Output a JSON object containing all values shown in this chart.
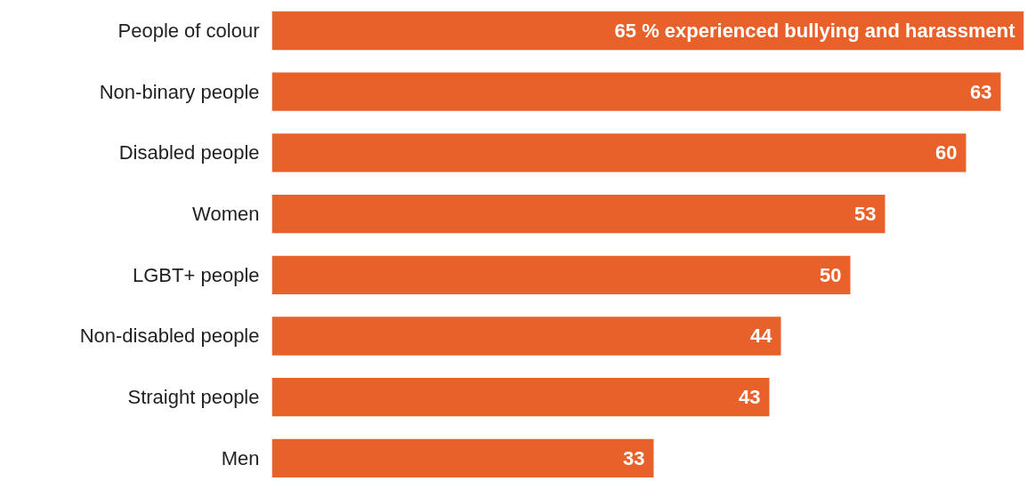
{
  "chart_data": {
    "type": "bar",
    "orientation": "horizontal",
    "categories": [
      "People of colour",
      "Non-binary people",
      "Disabled people",
      "Women",
      "LGBT+ people",
      "Non-disabled people",
      "Straight people",
      "Men"
    ],
    "values": [
      65,
      63,
      60,
      53,
      50,
      44,
      43,
      33
    ],
    "color": "#e8602a",
    "value_labels": [
      "65 % experienced bullying and harassment",
      "63",
      "60",
      "53",
      "50",
      "44",
      "43",
      "33"
    ],
    "tick_labels": "y",
    "grid": false
  }
}
